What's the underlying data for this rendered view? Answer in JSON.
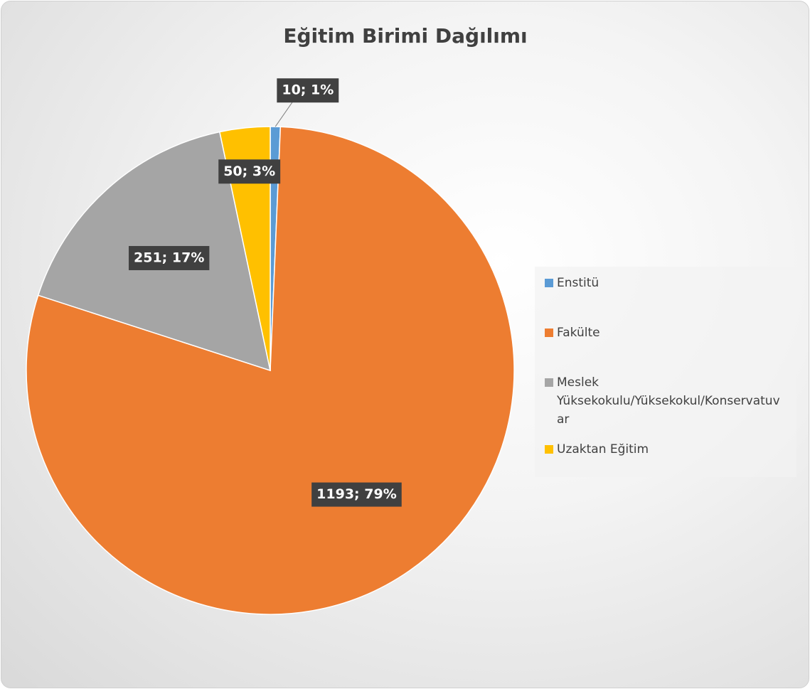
{
  "chart_data": {
    "type": "pie",
    "title": "Eğitim Birimi Dağılımı",
    "categories": [
      "Enstitü",
      "Fakülte",
      "Meslek Yüksekokulu/Yüksekokul/Konservatuvar",
      "Uzaktan Eğitim"
    ],
    "values": [
      10,
      1193,
      251,
      50
    ],
    "value_labels": [
      "10; 1%",
      "1193; 79%",
      "251; 17%",
      "50; 3%"
    ],
    "colors": [
      "#5b9bd5",
      "#ed7d31",
      "#a5a5a5",
      "#ffc000"
    ],
    "legend": "right"
  }
}
